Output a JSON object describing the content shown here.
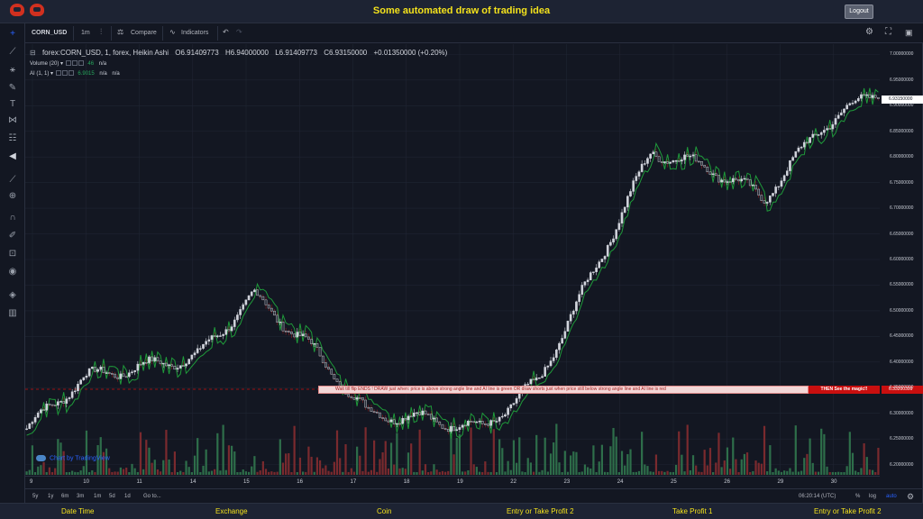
{
  "header": {
    "title": "Some automated draw of trading idea",
    "logout_label": "Logout"
  },
  "toolbar": {
    "symbol": "CORN_USD",
    "interval": "1m",
    "compare_label": "Compare",
    "indicators_label": "Indicators"
  },
  "legend": {
    "symbol": "forex:CORN_USD, 1, forex, Heikin Ashi",
    "open": "O6.91409773",
    "high": "H6.94000000",
    "low": "L6.91409773",
    "close": "C6.93150000",
    "change": "+0.01350000 (+0.20%)",
    "volume_label": "Volume (20)",
    "volume_value": "46",
    "volume_na": "n/a",
    "ai_label": "AI (1, 1)",
    "ai_value": "6.9015",
    "ai_na1": "n/a",
    "ai_na2": "n/a"
  },
  "price_axis": {
    "ticks": [
      "7.00000000",
      "6.95000000",
      "6.90000000",
      "6.85000000",
      "6.80000000",
      "6.75000000",
      "6.70000000",
      "6.65000000",
      "6.60000000",
      "6.55000000",
      "6.50000000",
      "6.45000000",
      "6.40000000",
      "6.35000000",
      "6.30000000",
      "6.25000000",
      "6.20000000"
    ],
    "last_price": "6.93150000",
    "line_price": "6.33200399"
  },
  "date_axis": {
    "ticks": [
      "9",
      "10",
      "11",
      "14",
      "15",
      "16",
      "17",
      "18",
      "19",
      "22",
      "23",
      "24",
      "25",
      "26",
      "29",
      "30"
    ]
  },
  "annotation": {
    "text": "Wait till flip ENDS !    DRAW just when:  price is above strong angle line and AI line is green          OR          draw shorts just when price still below strong angle line and AI line is red",
    "magic": "THEN See the magic!!"
  },
  "branding": "Chart by TradingView",
  "bottom_bar": {
    "ranges": [
      "5y",
      "1y",
      "6m",
      "3m",
      "1m",
      "5d",
      "1d"
    ],
    "goto": "Go to...",
    "time": "06:20:14 (UTC)",
    "percent": "%",
    "log": "log",
    "auto": "auto"
  },
  "footer": {
    "items": [
      "Date Time",
      "Exchange",
      "Coin",
      "Entry or Take Profit 2",
      "Take Profit 1",
      "Entry or Take Profit 2"
    ]
  },
  "colors": {
    "accent_yellow": "#f4e21c",
    "up": "#26a65b",
    "down": "#c0392b",
    "annotation_red": "#c90f0f"
  },
  "chart_data": {
    "type": "line",
    "chart_style": "Heikin Ashi candlestick with volume bars and green/red AI line",
    "x": [
      "9",
      "10",
      "11",
      "14",
      "15",
      "16",
      "17",
      "18",
      "19",
      "22",
      "23",
      "24",
      "25",
      "26",
      "29",
      "30"
    ],
    "series": [
      {
        "name": "",
        "values": [
          6.27,
          6.37,
          6.39,
          6.41,
          6.53,
          6.43,
          6.3,
          6.29,
          6.27,
          6.36,
          6.58,
          6.81,
          6.78,
          6.72,
          6.86,
          6.93
        ]
      }
    ],
    "ylim": [
      6.18,
      7.02
    ],
    "log_scale": false,
    "grid": true
  }
}
